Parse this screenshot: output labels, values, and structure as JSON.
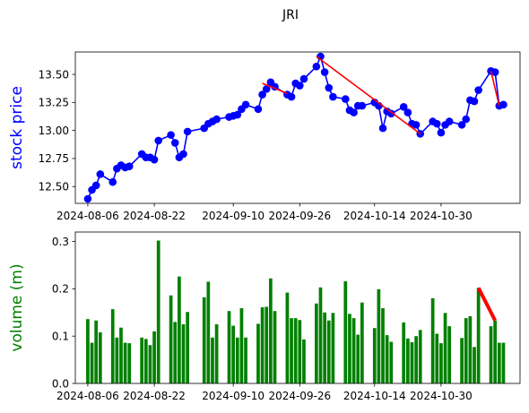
{
  "chart_data": [
    {
      "type": "line",
      "title": "JRI",
      "ylabel": "stock price",
      "ylabel_color": "#0000ff",
      "line_color": "#0000ff",
      "marker_color": "#0000ff",
      "trend_color": "#ff0000",
      "ylim": [
        12.35,
        13.7
      ],
      "yticks": [
        12.5,
        12.75,
        13.0,
        13.25,
        13.5
      ],
      "ytick_labels": [
        "12.50",
        "12.75",
        "13.00",
        "13.25",
        "13.50"
      ],
      "xlim": [
        "2024-08-03",
        "2024-11-18"
      ],
      "xticks": [
        "2024-08-06",
        "2024-08-22",
        "2024-09-10",
        "2024-09-26",
        "2024-10-14",
        "2024-10-30"
      ],
      "series": [
        {
          "x": [
            "2024-08-06",
            "2024-08-07",
            "2024-08-08",
            "2024-08-09",
            "2024-08-12",
            "2024-08-13",
            "2024-08-14",
            "2024-08-15",
            "2024-08-16",
            "2024-08-19",
            "2024-08-20",
            "2024-08-21",
            "2024-08-22",
            "2024-08-23",
            "2024-08-26",
            "2024-08-27",
            "2024-08-28",
            "2024-08-29",
            "2024-08-30",
            "2024-09-03",
            "2024-09-04",
            "2024-09-05",
            "2024-09-06",
            "2024-09-09",
            "2024-09-10",
            "2024-09-11",
            "2024-09-12",
            "2024-09-13",
            "2024-09-16",
            "2024-09-17",
            "2024-09-18",
            "2024-09-19",
            "2024-09-20",
            "2024-09-23",
            "2024-09-24",
            "2024-09-25",
            "2024-09-26",
            "2024-09-27",
            "2024-09-30",
            "2024-10-01",
            "2024-10-02",
            "2024-10-03",
            "2024-10-04",
            "2024-10-07",
            "2024-10-08",
            "2024-10-09",
            "2024-10-10",
            "2024-10-11",
            "2024-10-14",
            "2024-10-15",
            "2024-10-16",
            "2024-10-17",
            "2024-10-18",
            "2024-10-21",
            "2024-10-22",
            "2024-10-23",
            "2024-10-24",
            "2024-10-25",
            "2024-10-28",
            "2024-10-29",
            "2024-10-30",
            "2024-10-31",
            "2024-11-01",
            "2024-11-04",
            "2024-11-05",
            "2024-11-06",
            "2024-11-07",
            "2024-11-08",
            "2024-11-11",
            "2024-11-12",
            "2024-11-13",
            "2024-11-14"
          ],
          "values": [
            12.39,
            12.47,
            12.51,
            12.61,
            12.54,
            12.66,
            12.69,
            12.67,
            12.68,
            12.79,
            12.76,
            12.76,
            12.74,
            12.91,
            12.96,
            12.89,
            12.76,
            12.79,
            12.99,
            13.02,
            13.06,
            13.08,
            13.1,
            13.12,
            13.13,
            13.14,
            13.19,
            13.23,
            13.19,
            13.32,
            13.37,
            13.43,
            13.39,
            13.32,
            13.3,
            13.42,
            13.4,
            13.46,
            13.57,
            13.66,
            13.52,
            13.38,
            13.3,
            13.28,
            13.18,
            13.16,
            13.22,
            13.22,
            13.25,
            13.22,
            13.02,
            13.17,
            13.15,
            13.21,
            13.16,
            13.06,
            13.05,
            12.97,
            13.08,
            13.06,
            12.98,
            13.05,
            13.08,
            13.05,
            13.1,
            13.27,
            13.26,
            13.36,
            13.53,
            13.52,
            13.22,
            13.23
          ]
        }
      ],
      "trend_lines": [
        {
          "x": [
            "2024-09-17",
            "2024-09-23"
          ],
          "values": [
            13.42,
            13.33
          ]
        },
        {
          "x": [
            "2024-09-30",
            "2024-10-25"
          ],
          "values": [
            13.66,
            12.97
          ]
        },
        {
          "x": [
            "2024-11-11",
            "2024-11-13"
          ],
          "values": [
            13.53,
            13.22
          ]
        }
      ]
    },
    {
      "type": "bar",
      "ylabel": "volume (m)",
      "ylabel_color": "#008000",
      "bar_color": "#008000",
      "trend_color": "#ff0000",
      "ylim": [
        0,
        0.32
      ],
      "yticks": [
        0.0,
        0.1,
        0.2,
        0.3
      ],
      "ytick_labels": [
        "0.0",
        "0.1",
        "0.2",
        "0.3"
      ],
      "xlim": [
        "2024-08-03",
        "2024-11-18"
      ],
      "xticks": [
        "2024-08-06",
        "2024-08-22",
        "2024-09-10",
        "2024-09-26",
        "2024-10-14",
        "2024-10-30"
      ],
      "series": [
        {
          "x": [
            "2024-08-06",
            "2024-08-07",
            "2024-08-08",
            "2024-08-09",
            "2024-08-12",
            "2024-08-13",
            "2024-08-14",
            "2024-08-15",
            "2024-08-16",
            "2024-08-19",
            "2024-08-20",
            "2024-08-21",
            "2024-08-22",
            "2024-08-23",
            "2024-08-26",
            "2024-08-27",
            "2024-08-28",
            "2024-08-29",
            "2024-08-30",
            "2024-09-03",
            "2024-09-04",
            "2024-09-05",
            "2024-09-06",
            "2024-09-09",
            "2024-09-10",
            "2024-09-11",
            "2024-09-12",
            "2024-09-13",
            "2024-09-16",
            "2024-09-17",
            "2024-09-18",
            "2024-09-19",
            "2024-09-20",
            "2024-09-23",
            "2024-09-24",
            "2024-09-25",
            "2024-09-26",
            "2024-09-27",
            "2024-09-30",
            "2024-10-01",
            "2024-10-02",
            "2024-10-03",
            "2024-10-04",
            "2024-10-07",
            "2024-10-08",
            "2024-10-09",
            "2024-10-10",
            "2024-10-11",
            "2024-10-14",
            "2024-10-15",
            "2024-10-16",
            "2024-10-17",
            "2024-10-18",
            "2024-10-21",
            "2024-10-22",
            "2024-10-23",
            "2024-10-24",
            "2024-10-25",
            "2024-10-28",
            "2024-10-29",
            "2024-10-30",
            "2024-10-31",
            "2024-11-01",
            "2024-11-04",
            "2024-11-05",
            "2024-11-06",
            "2024-11-07",
            "2024-11-08",
            "2024-11-11",
            "2024-11-12",
            "2024-11-13",
            "2024-11-14"
          ],
          "values": [
            0.136,
            0.086,
            0.133,
            0.108,
            0.157,
            0.097,
            0.118,
            0.086,
            0.085,
            0.097,
            0.094,
            0.081,
            0.11,
            0.302,
            0.186,
            0.13,
            0.226,
            0.125,
            0.151,
            0.182,
            0.215,
            0.097,
            0.125,
            0.153,
            0.122,
            0.097,
            0.159,
            0.097,
            0.126,
            0.161,
            0.162,
            0.222,
            0.153,
            0.192,
            0.138,
            0.138,
            0.134,
            0.093,
            0.169,
            0.203,
            0.15,
            0.133,
            0.149,
            0.216,
            0.147,
            0.138,
            0.103,
            0.171,
            0.117,
            0.199,
            0.159,
            0.102,
            0.088,
            0.129,
            0.095,
            0.087,
            0.1,
            0.113,
            0.18,
            0.105,
            0.085,
            0.149,
            0.121,
            0.096,
            0.138,
            0.142,
            0.077,
            0.202,
            0.121,
            0.133,
            0.086,
            0.086
          ]
        }
      ],
      "trend_lines": [
        {
          "x": [
            "2024-11-08",
            "2024-11-12"
          ],
          "values": [
            0.202,
            0.133
          ]
        }
      ]
    }
  ]
}
